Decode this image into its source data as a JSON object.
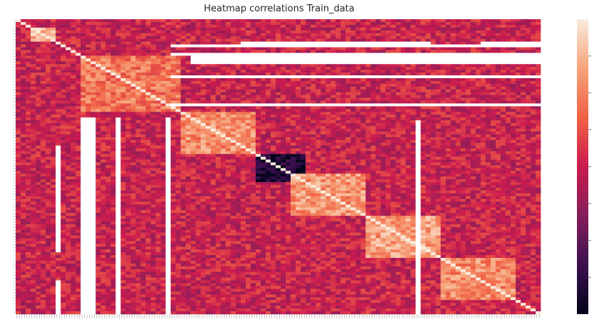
{
  "chart_data": {
    "type": "heatmap",
    "title": "Heatmap correlations Train_data",
    "xlabel": "",
    "ylabel": "",
    "colormap": "rocket",
    "colormap_stops": [
      "#03051a",
      "#3b0f4f",
      "#841e5a",
      "#cb1b4f",
      "#f06043",
      "#f6a47b",
      "#faebdd"
    ],
    "missing_color": "#ffffff",
    "n_features": 210,
    "value_range": [
      -1,
      1
    ],
    "typical_value": 0.0,
    "diagonal_value": 1.0,
    "blocks": [
      {
        "rows": [
          5,
          15
        ],
        "cols": [
          5,
          15
        ],
        "value": 0.75
      },
      {
        "rows": [
          25,
          65
        ],
        "cols": [
          25,
          65
        ],
        "value": 0.45
      },
      {
        "rows": [
          66,
          95
        ],
        "cols": [
          66,
          95
        ],
        "value": 0.55
      },
      {
        "rows": [
          95,
          115
        ],
        "cols": [
          95,
          115
        ],
        "value": -0.85
      },
      {
        "rows": [
          110,
          140
        ],
        "cols": [
          110,
          140
        ],
        "value": 0.6
      },
      {
        "rows": [
          140,
          170
        ],
        "cols": [
          140,
          170
        ],
        "value": 0.65
      },
      {
        "rows": [
          170,
          200
        ],
        "cols": [
          170,
          200
        ],
        "value": 0.55
      }
    ],
    "missing_rows": [
      [
        18,
        20
      ],
      [
        24,
        26
      ],
      [
        40,
        41
      ],
      [
        60,
        61
      ]
    ],
    "missing_cols": [
      [
        26,
        30
      ],
      [
        40,
        42
      ],
      [
        160,
        161
      ],
      [
        185,
        186
      ]
    ],
    "missing_regions": [
      {
        "rows": [
          15,
          18
        ],
        "cols": [
          90,
          165
        ]
      },
      {
        "rows": [
          15,
          18
        ],
        "cols": [
          185,
          210
        ]
      },
      {
        "rows": [
          40,
          41
        ],
        "cols": [
          90,
          165
        ]
      },
      {
        "rows": [
          55,
          56
        ],
        "cols": [
          90,
          165
        ]
      },
      {
        "rows": [
          70,
          210
        ],
        "cols": [
          25,
          32
        ]
      },
      {
        "rows": [
          70,
          210
        ],
        "cols": [
          40,
          42
        ]
      },
      {
        "rows": [
          70,
          210
        ],
        "cols": [
          60,
          61
        ]
      }
    ],
    "colorbar_ticks": [
      -0.75,
      -0.5,
      -0.25,
      0.0,
      0.25,
      0.5,
      0.75
    ]
  }
}
